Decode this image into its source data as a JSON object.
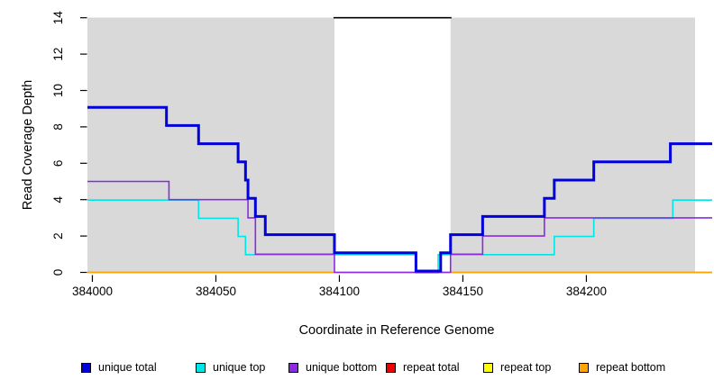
{
  "chart_data": {
    "type": "line",
    "subtype": "step",
    "title": "",
    "xlabel": "Coordinate in Reference Genome",
    "ylabel": "Read Coverage Depth",
    "xlim": [
      383998,
      384252
    ],
    "ylim": [
      0,
      14
    ],
    "x_ticks": [
      384000,
      384050,
      384100,
      384150,
      384200
    ],
    "y_ticks": [
      0,
      2,
      4,
      6,
      8,
      10,
      12,
      14
    ],
    "grid": false,
    "legend_position": "bottom",
    "plot_background": "#d9d9d9",
    "masked_region": {
      "x_start": 384098,
      "x_end": 384145,
      "fill": "#ffffff",
      "top_line_depth": 14,
      "top_line_color": "#000000"
    },
    "series": [
      {
        "name": "unique total",
        "color": "#0000DD",
        "steps": [
          [
            383998,
            9
          ],
          [
            384030,
            8
          ],
          [
            384043,
            7
          ],
          [
            384059,
            6
          ],
          [
            384062,
            5
          ],
          [
            384063,
            4
          ],
          [
            384066,
            3
          ],
          [
            384070,
            2
          ],
          [
            384098,
            1
          ],
          [
            384131,
            0
          ],
          [
            384141,
            1
          ],
          [
            384145,
            2
          ],
          [
            384158,
            3
          ],
          [
            384183,
            4
          ],
          [
            384187,
            5
          ],
          [
            384203,
            6
          ],
          [
            384234,
            7
          ],
          [
            384251,
            7
          ]
        ]
      },
      {
        "name": "unique top",
        "color": "#00E5E5",
        "steps": [
          [
            383998,
            4
          ],
          [
            384043,
            3
          ],
          [
            384059,
            2
          ],
          [
            384062,
            1
          ],
          [
            384131,
            0
          ],
          [
            384140,
            1
          ],
          [
            384187,
            2
          ],
          [
            384203,
            3
          ],
          [
            384235,
            4
          ],
          [
            384251,
            4
          ]
        ]
      },
      {
        "name": "unique bottom",
        "color": "#8A2BE2",
        "steps": [
          [
            383998,
            5
          ],
          [
            384031,
            4
          ],
          [
            384063,
            3
          ],
          [
            384066,
            1
          ],
          [
            384098,
            0
          ],
          [
            384145,
            1
          ],
          [
            384158,
            2
          ],
          [
            384183,
            3
          ],
          [
            384251,
            3
          ]
        ]
      },
      {
        "name": "repeat total",
        "color": "#EE0000",
        "steps": [
          [
            383998,
            0
          ],
          [
            384251,
            0
          ]
        ]
      },
      {
        "name": "repeat top",
        "color": "#FFFF00",
        "steps": [
          [
            383998,
            0
          ],
          [
            384251,
            0
          ]
        ]
      },
      {
        "name": "repeat bottom",
        "color": "#FFA500",
        "steps": [
          [
            383998,
            0
          ],
          [
            384251,
            0
          ]
        ]
      }
    ]
  }
}
